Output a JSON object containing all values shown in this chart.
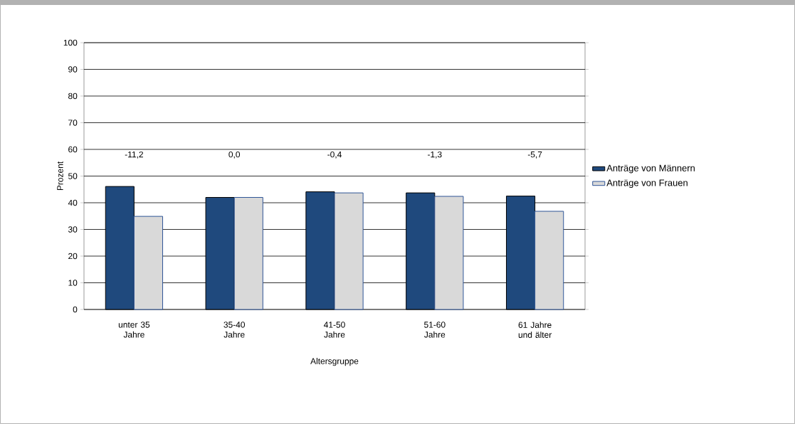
{
  "chart_data": {
    "type": "bar",
    "xlabel": "Altersgruppe",
    "ylabel": "Prozent",
    "categories": [
      "unter 35 Jahre",
      "35-40 Jahre",
      "41-50 Jahre",
      "51-60 Jahre",
      "61 Jahre und älter"
    ],
    "series": [
      {
        "name": "Anträge von Männern",
        "color": "#1f497d",
        "values": [
          46.1,
          42.0,
          44.1,
          43.7,
          42.5
        ]
      },
      {
        "name": "Anträge von Frauen",
        "color": "#d9d9d9",
        "values": [
          34.9,
          42.0,
          43.7,
          42.4,
          36.8
        ]
      }
    ],
    "ylim": [
      0,
      100
    ],
    "yticks": [
      0,
      10,
      20,
      30,
      40,
      50,
      60,
      70,
      80,
      90,
      100
    ],
    "grid": "y",
    "legend": "right",
    "annotations": [
      "-11,2",
      "0,0",
      "-0,4",
      "-1,3",
      "-5,7"
    ]
  }
}
